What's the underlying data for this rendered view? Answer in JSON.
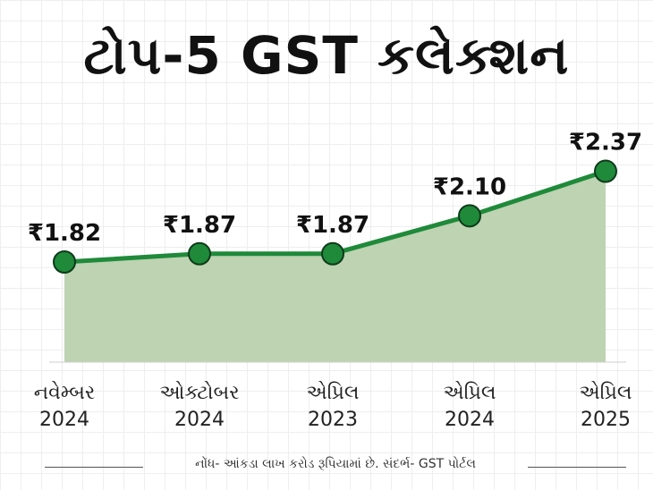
{
  "title": "ટોપ-5 GST કલેક્શન",
  "note": "નોંધ- આંકડા લાખ કરોડ રૂપિયામાં છે. સંદર્ભ- GST પોર્ટલ",
  "colors": {
    "line": "#1f8a3a",
    "area": "#bdd3b1",
    "marker_fill": "#1f8a3a",
    "marker_stroke": "#0d3b1a",
    "text": "#111111"
  },
  "chart_data": {
    "type": "area",
    "categories": [
      [
        "નવેમ્બર",
        "2024"
      ],
      [
        "ઓક્ટોબર",
        "2024"
      ],
      [
        "એપ્રિલ",
        "2023"
      ],
      [
        "એપ્રિલ",
        "2024"
      ],
      [
        "એપ્રિલ",
        "2025"
      ]
    ],
    "values": [
      1.82,
      1.87,
      1.87,
      2.1,
      2.37
    ],
    "data_labels": [
      "₹1.82",
      "₹1.87",
      "₹1.87",
      "₹2.10",
      "₹2.37"
    ],
    "grid": true,
    "legend": "none"
  }
}
